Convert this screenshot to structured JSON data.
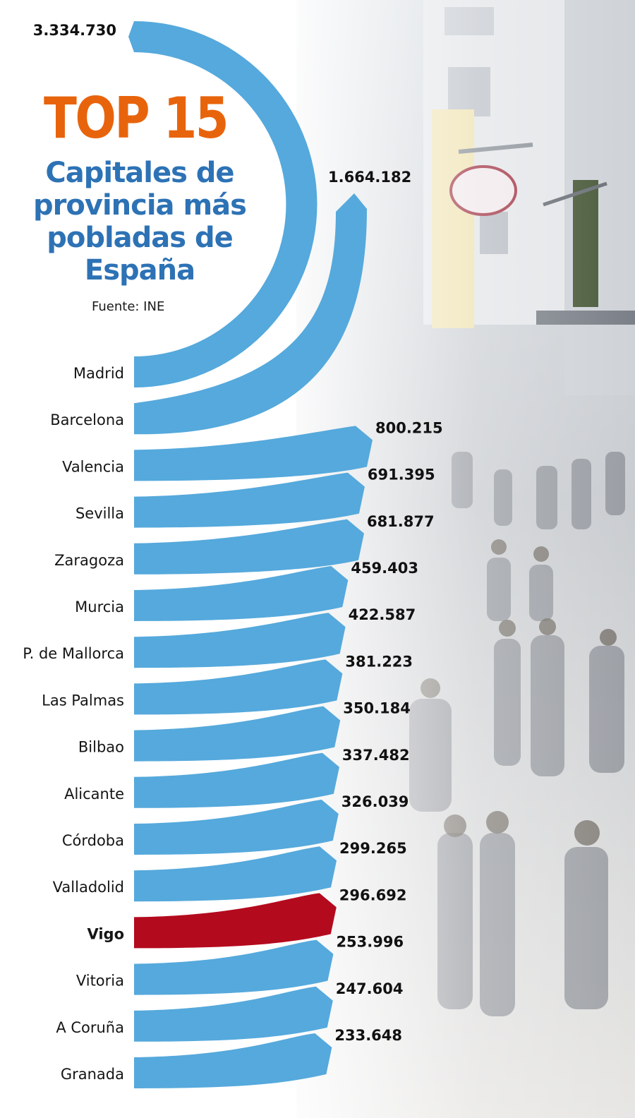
{
  "header": {
    "title": "TOP 15",
    "subtitle": "Capitales de provincia más pobladas de España",
    "source": "Fuente: INE"
  },
  "colors": {
    "bar": "#55a9dc",
    "highlight": "#b40a1e",
    "title": "#e8640c",
    "subtitle": "#2d72b5"
  },
  "background": {
    "description_icon": "street-photo"
  },
  "chart_data": {
    "type": "bar",
    "title": "Capitales de provincia más pobladas de España",
    "categories": [
      "Madrid",
      "Barcelona",
      "Valencia",
      "Sevilla",
      "Zaragoza",
      "Murcia",
      "P. de Mallorca",
      "Las Palmas",
      "Bilbao",
      "Alicante",
      "Córdoba",
      "Valladolid",
      "Vigo",
      "Vitoria",
      "A Coruña",
      "Granada"
    ],
    "values": [
      3334730,
      1664182,
      800215,
      691395,
      681877,
      459403,
      422587,
      381223,
      350184,
      337482,
      326039,
      299265,
      296692,
      253996,
      247604,
      233648
    ],
    "labels": [
      "3.334.730",
      "1.664.182",
      "800.215",
      "691.395",
      "681.877",
      "459.403",
      "422.587",
      "381.223",
      "350.184",
      "337.482",
      "326.039",
      "299.265",
      "296.692",
      "253.996",
      "247.604",
      "233.648"
    ],
    "highlight": "Vigo"
  }
}
